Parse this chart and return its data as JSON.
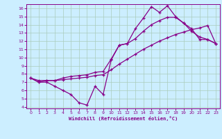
{
  "xlabel": "Windchill (Refroidissement éolien,°C)",
  "bg_color": "#cceeff",
  "line_color": "#880088",
  "grid_color": "#aaccbb",
  "xlim": [
    -0.5,
    23.5
  ],
  "ylim": [
    3.8,
    16.5
  ],
  "xticks": [
    0,
    1,
    2,
    3,
    4,
    5,
    6,
    7,
    8,
    9,
    10,
    11,
    12,
    13,
    14,
    15,
    16,
    17,
    18,
    19,
    20,
    21,
    22,
    23
  ],
  "yticks": [
    4,
    5,
    6,
    7,
    8,
    9,
    10,
    11,
    12,
    13,
    14,
    15,
    16
  ],
  "series1_x": [
    0,
    1,
    2,
    3,
    4,
    5,
    6,
    7,
    8,
    9,
    10,
    11,
    12,
    13,
    14,
    15,
    16,
    17,
    18,
    19,
    20,
    21,
    22,
    23
  ],
  "series1_y": [
    7.5,
    7.0,
    7.0,
    6.5,
    6.0,
    5.5,
    4.5,
    4.2,
    6.5,
    5.5,
    9.7,
    11.5,
    11.7,
    13.5,
    14.8,
    16.2,
    15.5,
    16.3,
    15.0,
    14.2,
    13.5,
    12.2,
    12.2,
    11.7
  ],
  "series2_x": [
    0,
    1,
    2,
    3,
    4,
    5,
    6,
    7,
    8,
    9,
    10,
    11,
    12,
    13,
    14,
    15,
    16,
    17,
    18,
    19,
    20,
    21,
    22,
    23
  ],
  "series2_y": [
    7.5,
    7.0,
    7.2,
    7.2,
    7.5,
    7.7,
    7.8,
    7.9,
    8.2,
    8.3,
    9.8,
    11.5,
    11.7,
    12.3,
    13.2,
    14.0,
    14.5,
    14.9,
    14.9,
    14.2,
    13.2,
    12.5,
    12.2,
    11.7
  ],
  "series3_x": [
    0,
    1,
    2,
    3,
    4,
    5,
    6,
    7,
    8,
    9,
    10,
    11,
    12,
    13,
    14,
    15,
    16,
    17,
    18,
    19,
    20,
    21,
    22,
    23
  ],
  "series3_y": [
    7.5,
    7.2,
    7.2,
    7.2,
    7.3,
    7.4,
    7.5,
    7.6,
    7.8,
    7.9,
    8.5,
    9.2,
    9.8,
    10.4,
    11.0,
    11.5,
    12.0,
    12.4,
    12.8,
    13.1,
    13.4,
    13.6,
    13.9,
    11.7
  ]
}
